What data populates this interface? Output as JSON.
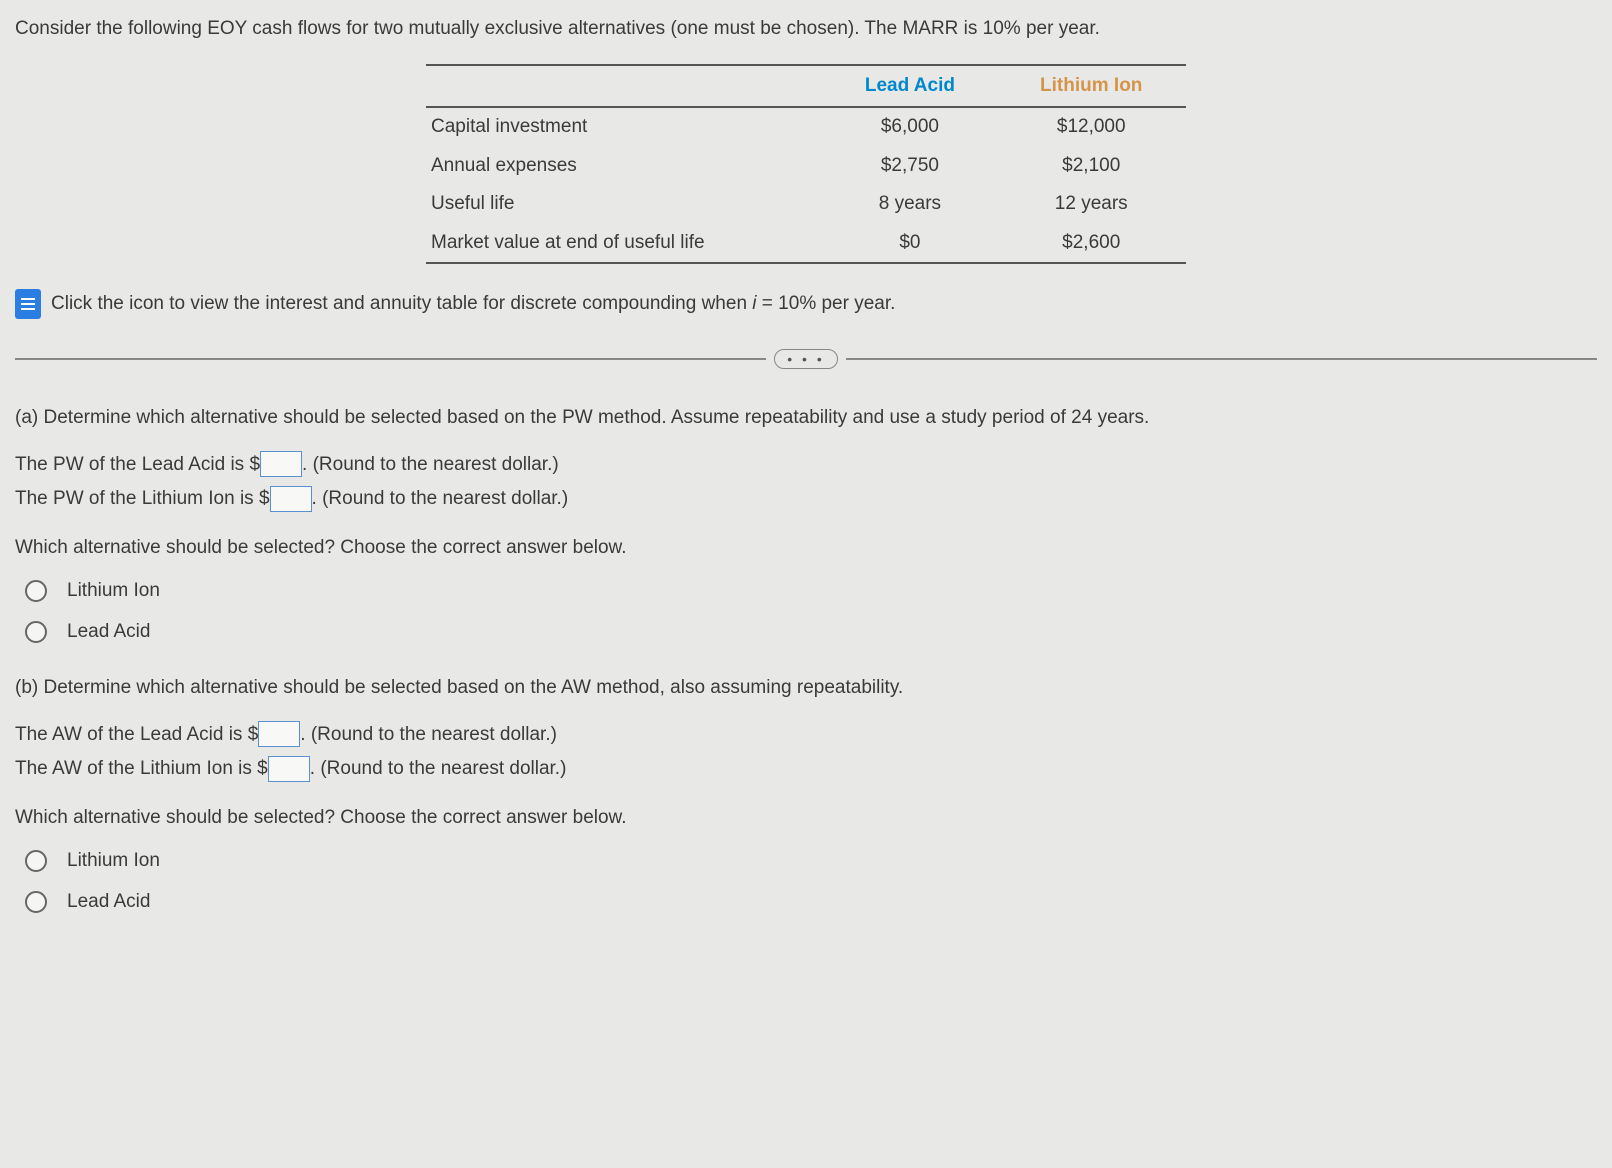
{
  "intro_text": "Consider the following EOY cash flows for two mutually exclusive alternatives (one must be chosen). The MARR is 10% per year.",
  "table": {
    "headers": {
      "lead_acid": "Lead Acid",
      "lithium": "Lithium Ion"
    },
    "rows": [
      {
        "label": "Capital investment",
        "lead": "$6,000",
        "lithium": "$12,000"
      },
      {
        "label": "Annual expenses",
        "lead": "$2,750",
        "lithium": "$2,100"
      },
      {
        "label": "Useful life",
        "lead": "8 years",
        "lithium": "12 years"
      },
      {
        "label": "Market value at end of useful life",
        "lead": "$0",
        "lithium": "$2,600"
      }
    ]
  },
  "icon_link_text": "Click the icon to view the interest and annuity table for discrete compounding when ",
  "icon_link_i": "i",
  "icon_link_tail": " = 10% per year.",
  "part_a": {
    "prompt": "(a)  Determine which alternative should be selected based on the PW method. Assume repeatability and use a study period of 24 years.",
    "line1_pre": "The PW of the Lead Acid is $",
    "line1_post": ". (Round to the nearest dollar.)",
    "line2_pre": "The PW of the Lithium Ion is $",
    "line2_post": ". (Round to the nearest dollar.)",
    "choose": "Which alternative should be selected? Choose the correct answer below.",
    "opt1": "Lithium Ion",
    "opt2": "Lead Acid"
  },
  "part_b": {
    "prompt": "(b)  Determine which alternative should be selected based on the AW method, also assuming repeatability.",
    "line1_pre": "The AW of the Lead Acid is $",
    "line1_post": ". (Round to the nearest dollar.)",
    "line2_pre": "The AW of the Lithium Ion is $",
    "line2_post": ". (Round to the nearest dollar.)",
    "choose": "Which alternative should be selected? Choose the correct answer below.",
    "opt1": "Lithium Ion",
    "opt2": "Lead Acid"
  },
  "ellipsis": "• • •"
}
